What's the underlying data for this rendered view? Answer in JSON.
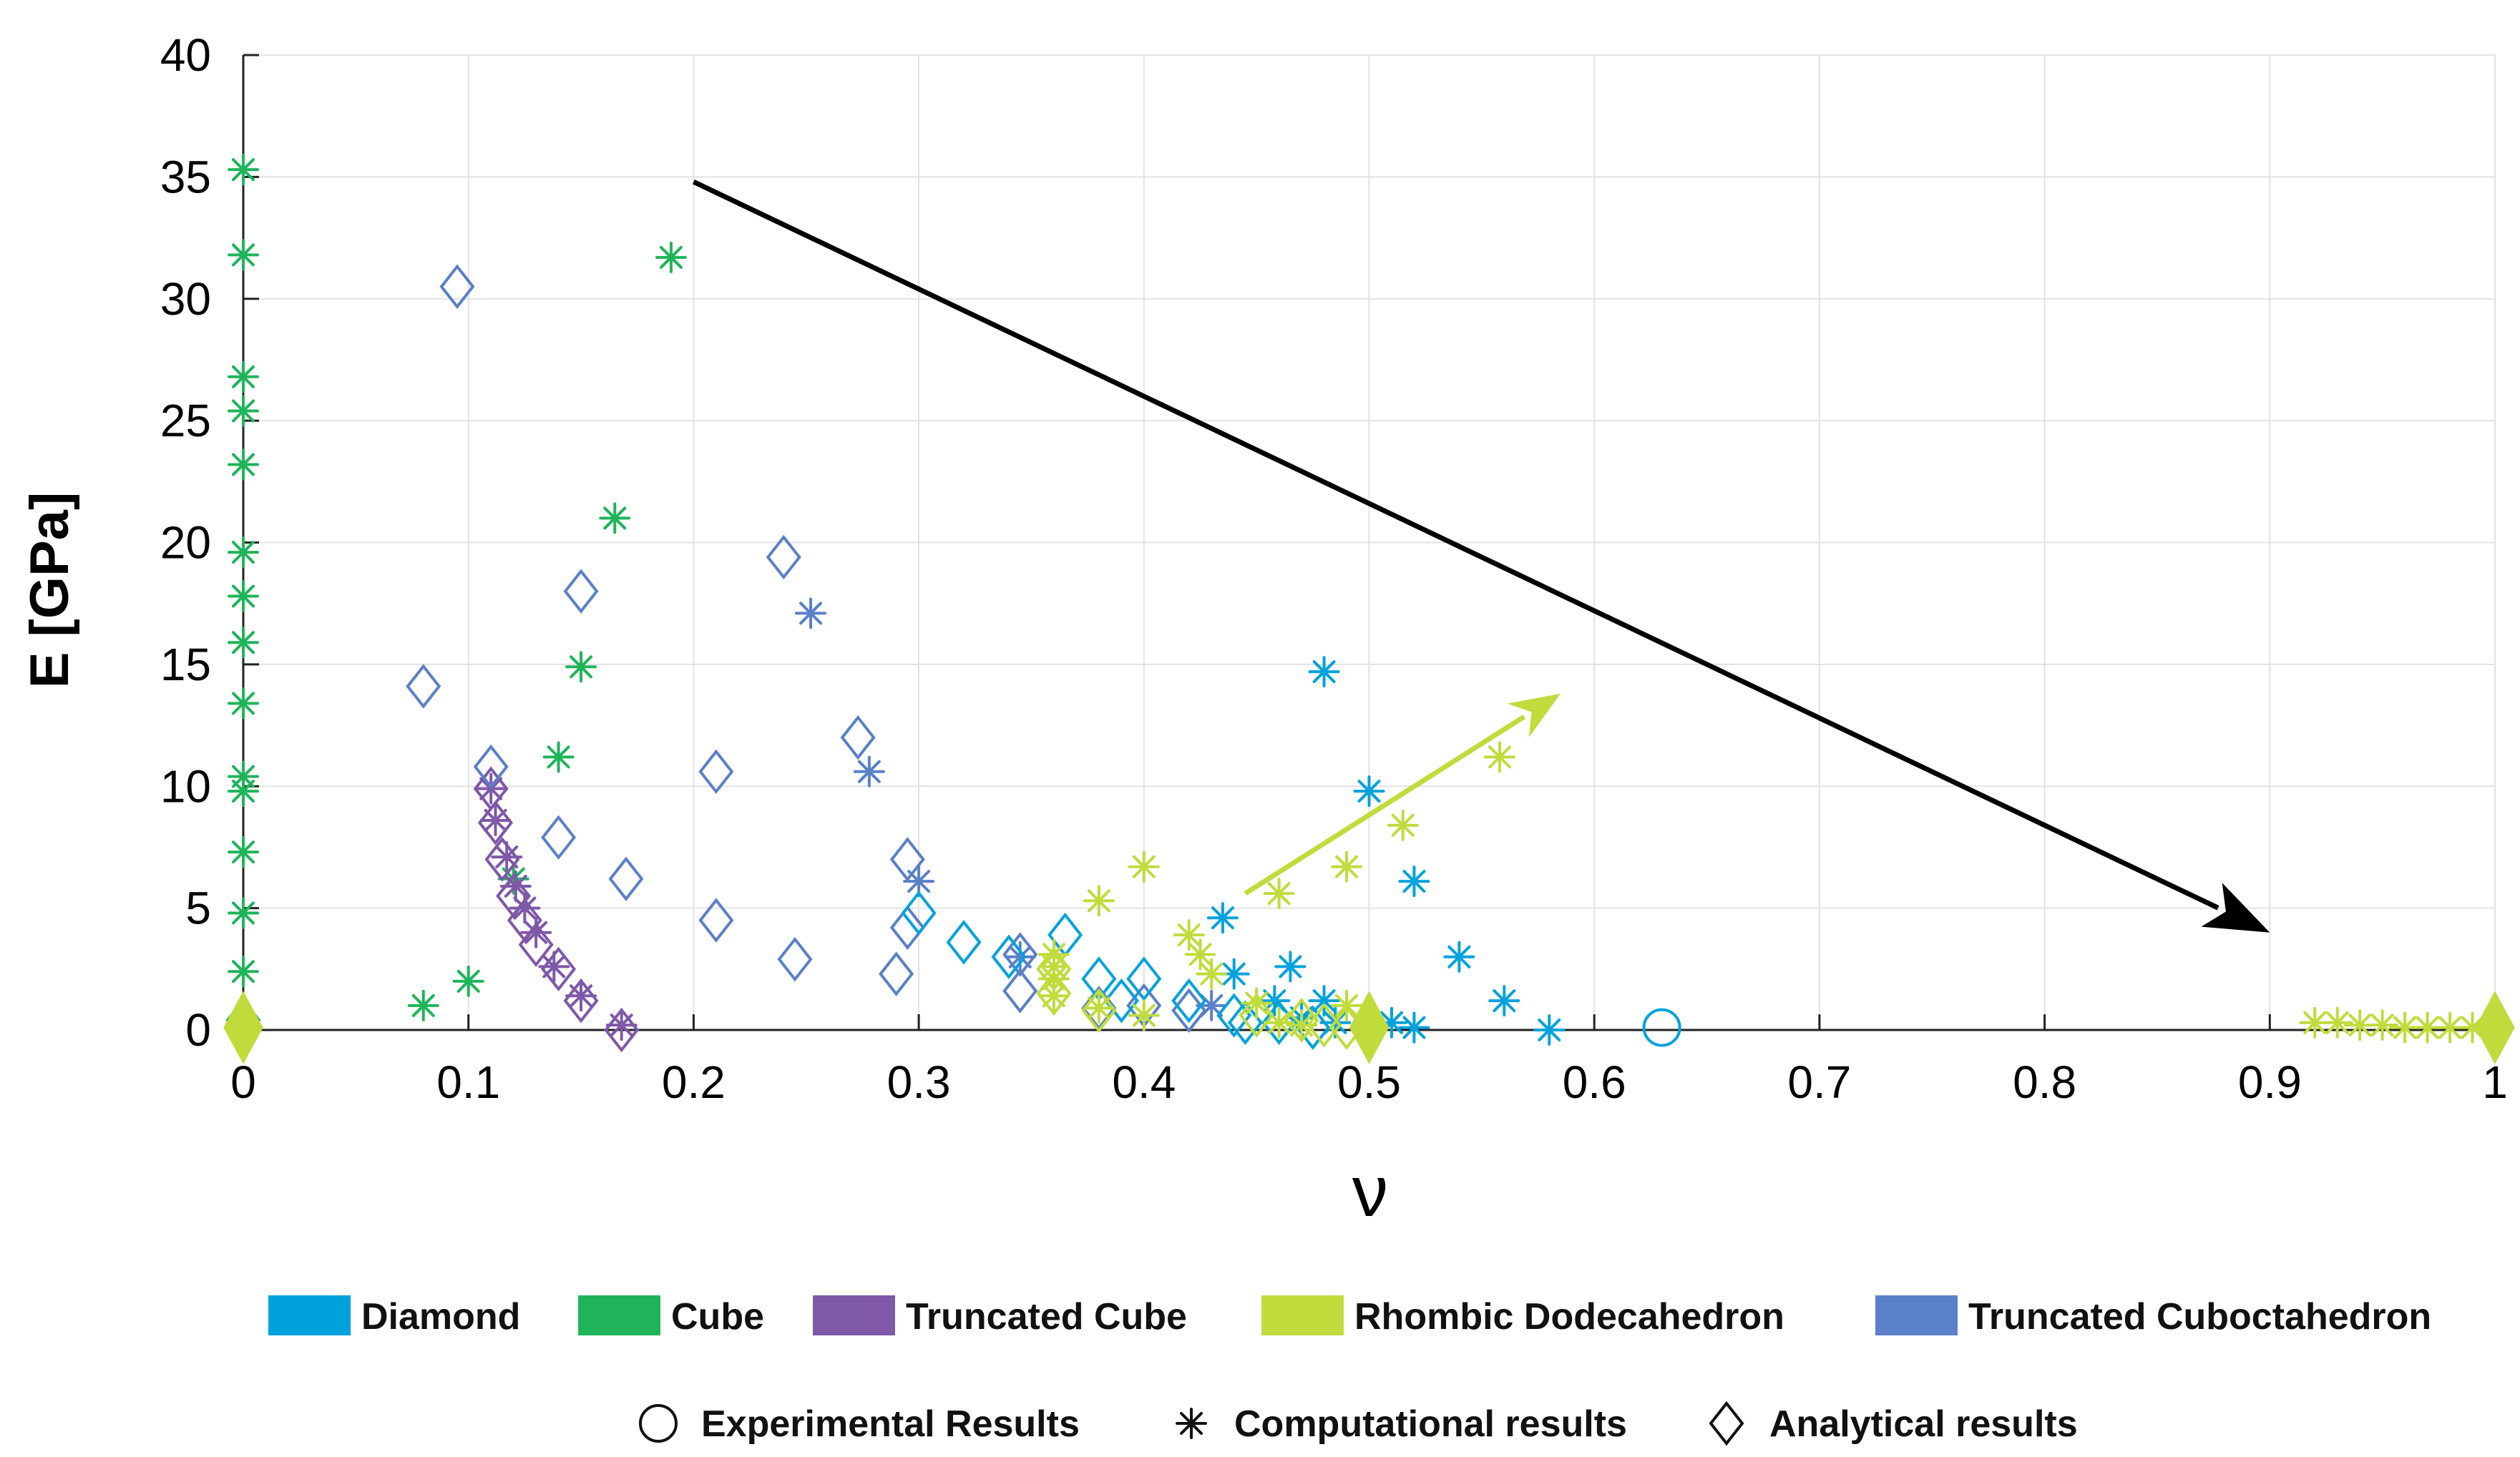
{
  "chart_data": {
    "type": "scatter",
    "title": "",
    "xlabel": "ν",
    "ylabel": "E [GPa]",
    "xlim": [
      0,
      1
    ],
    "ylim": [
      0,
      40
    ],
    "xticks": [
      0,
      0.1,
      0.2,
      0.3,
      0.4,
      0.5,
      0.6,
      0.7,
      0.8,
      0.9,
      1
    ],
    "xtick_labels": [
      "0",
      "0.1",
      "0.2",
      "0.3",
      "0.4",
      "0.5",
      "0.6",
      "0.7",
      "0.8",
      "0.9",
      "1"
    ],
    "yticks": [
      0,
      5,
      10,
      15,
      20,
      25,
      30,
      35,
      40
    ],
    "ytick_labels": [
      "0",
      "5",
      "10",
      "15",
      "20",
      "25",
      "30",
      "35",
      "40"
    ],
    "grid": true,
    "legend_placement": "bottom",
    "colors": {
      "Diamond": "#00a2de",
      "Cube": "#1fb45a",
      "Truncated Cube": "#7f58a8",
      "Rhombic Dodecahedron": "#bfdc3c",
      "Truncated Cuboctahedron": "#5a80c8",
      "trend_arrow": "#000000"
    },
    "legend_materials": [
      "Diamond",
      "Cube",
      "Truncated Cube",
      "Rhombic Dodecahedron",
      "Truncated Cuboctahedron"
    ],
    "legend_methods": [
      {
        "marker": "circle",
        "label": "Experimental Results"
      },
      {
        "marker": "asterisk",
        "label": "Computational results"
      },
      {
        "marker": "diamond",
        "label": "Analytical results"
      }
    ],
    "annotations": [
      {
        "type": "arrow",
        "color": "#000000",
        "from": [
          0.2,
          34.8
        ],
        "to": [
          0.9,
          4.0
        ]
      },
      {
        "type": "arrow",
        "color": "#bfdc3c",
        "from": [
          0.445,
          5.6
        ],
        "to": [
          0.585,
          13.8
        ]
      }
    ],
    "series": [
      {
        "name": "Cube",
        "marker": "asterisk",
        "points": [
          [
            0,
            35.3
          ],
          [
            0,
            31.8
          ],
          [
            0,
            26.8
          ],
          [
            0,
            25.4
          ],
          [
            0,
            23.2
          ],
          [
            0,
            19.6
          ],
          [
            0,
            17.8
          ],
          [
            0,
            15.9
          ],
          [
            0,
            13.4
          ],
          [
            0,
            10.4
          ],
          [
            0,
            9.8
          ],
          [
            0,
            7.3
          ],
          [
            0,
            4.8
          ],
          [
            0,
            2.4
          ],
          [
            0.08,
            1.0
          ],
          [
            0.1,
            2.0
          ],
          [
            0.12,
            6.2
          ],
          [
            0.14,
            11.2
          ],
          [
            0.15,
            14.9
          ],
          [
            0.165,
            21.0
          ],
          [
            0.19,
            31.7
          ]
        ]
      },
      {
        "name": "Cube",
        "marker": "diamond",
        "points": [
          [
            0,
            0.4
          ],
          [
            0,
            0.1
          ]
        ]
      },
      {
        "name": "Truncated Cube",
        "marker": "asterisk",
        "points": [
          [
            0.11,
            9.9
          ],
          [
            0.112,
            8.6
          ],
          [
            0.117,
            7.1
          ],
          [
            0.121,
            5.9
          ],
          [
            0.125,
            5.0
          ],
          [
            0.13,
            4.0
          ],
          [
            0.138,
            2.6
          ],
          [
            0.15,
            1.4
          ],
          [
            0.168,
            0.2
          ]
        ]
      },
      {
        "name": "Truncated Cube",
        "marker": "diamond",
        "points": [
          [
            0.11,
            9.9
          ],
          [
            0.112,
            8.5
          ],
          [
            0.115,
            7.0
          ],
          [
            0.12,
            5.5
          ],
          [
            0.125,
            4.5
          ],
          [
            0.13,
            3.5
          ],
          [
            0.14,
            2.5
          ],
          [
            0.15,
            1.2
          ],
          [
            0.168,
            0.0
          ]
        ]
      },
      {
        "name": "Truncated Cuboctahedron",
        "marker": "asterisk",
        "points": [
          [
            0.252,
            17.1
          ],
          [
            0.278,
            10.6
          ],
          [
            0.3,
            6.1
          ],
          [
            0.345,
            3.0
          ],
          [
            0.43,
            1.0
          ]
        ]
      },
      {
        "name": "Truncated Cuboctahedron",
        "marker": "diamond",
        "points": [
          [
            0.08,
            14.1
          ],
          [
            0.095,
            30.5
          ],
          [
            0.11,
            10.8
          ],
          [
            0.14,
            7.9
          ],
          [
            0.15,
            18.0
          ],
          [
            0.17,
            6.2
          ],
          [
            0.21,
            10.6
          ],
          [
            0.21,
            4.5
          ],
          [
            0.24,
            19.4
          ],
          [
            0.245,
            2.9
          ],
          [
            0.273,
            12.0
          ],
          [
            0.29,
            2.3
          ],
          [
            0.295,
            7.0
          ],
          [
            0.295,
            4.2
          ],
          [
            0.345,
            3.1
          ],
          [
            0.345,
            1.6
          ],
          [
            0.38,
            0.9
          ],
          [
            0.4,
            1.0
          ],
          [
            0.42,
            0.8
          ]
        ]
      },
      {
        "name": "Diamond",
        "marker": "asterisk",
        "points": [
          [
            0.435,
            4.6
          ],
          [
            0.44,
            2.3
          ],
          [
            0.458,
            1.2
          ],
          [
            0.465,
            2.6
          ],
          [
            0.47,
            0.5
          ],
          [
            0.48,
            14.7
          ],
          [
            0.48,
            1.2
          ],
          [
            0.485,
            0.3
          ],
          [
            0.5,
            9.8
          ],
          [
            0.51,
            0.3
          ],
          [
            0.52,
            6.1
          ],
          [
            0.52,
            0.1
          ],
          [
            0.54,
            3.0
          ],
          [
            0.56,
            1.2
          ],
          [
            0.58,
            0.0
          ]
        ]
      },
      {
        "name": "Diamond",
        "marker": "diamond",
        "points": [
          [
            0.3,
            4.8
          ],
          [
            0.32,
            3.6
          ],
          [
            0.34,
            3.0
          ],
          [
            0.365,
            3.9
          ],
          [
            0.38,
            2.1
          ],
          [
            0.39,
            1.2
          ],
          [
            0.4,
            2.1
          ],
          [
            0.42,
            1.2
          ],
          [
            0.44,
            0.6
          ],
          [
            0.445,
            0.3
          ],
          [
            0.46,
            0.3
          ],
          [
            0.475,
            0.1
          ]
        ]
      },
      {
        "name": "Diamond",
        "marker": "circle",
        "points": [
          [
            0.63,
            0.1
          ]
        ]
      },
      {
        "name": "Rhombic Dodecahedron",
        "marker": "asterisk",
        "points": [
          [
            0.36,
            3.1
          ],
          [
            0.36,
            2.6
          ],
          [
            0.36,
            2.1
          ],
          [
            0.36,
            1.4
          ],
          [
            0.38,
            5.3
          ],
          [
            0.38,
            0.9
          ],
          [
            0.4,
            6.7
          ],
          [
            0.4,
            0.6
          ],
          [
            0.42,
            3.9
          ],
          [
            0.425,
            3.1
          ],
          [
            0.43,
            2.3
          ],
          [
            0.45,
            1.1
          ],
          [
            0.46,
            5.6
          ],
          [
            0.46,
            0.3
          ],
          [
            0.47,
            0.2
          ],
          [
            0.49,
            6.7
          ],
          [
            0.49,
            1.0
          ],
          [
            0.5,
            0.1
          ],
          [
            0.515,
            8.4
          ],
          [
            0.558,
            11.2
          ],
          [
            0.92,
            0.3
          ],
          [
            0.93,
            0.3
          ],
          [
            0.94,
            0.2
          ],
          [
            0.95,
            0.2
          ],
          [
            0.96,
            0.1
          ],
          [
            0.97,
            0.1
          ],
          [
            0.98,
            0.1
          ],
          [
            0.99,
            0.1
          ]
        ]
      },
      {
        "name": "Rhombic Dodecahedron",
        "marker": "diamond",
        "points": [
          [
            0.36,
            2.5
          ],
          [
            0.36,
            1.5
          ],
          [
            0.38,
            0.8
          ],
          [
            0.45,
            0.6
          ],
          [
            0.47,
            0.4
          ],
          [
            0.48,
            0.2
          ],
          [
            0.49,
            0.1
          ]
        ]
      },
      {
        "name": "Rhombic Dodecahedron",
        "marker": "filled-diamond",
        "points": [
          [
            0,
            0.1
          ],
          [
            0.5,
            0.1
          ],
          [
            1,
            0.1
          ]
        ]
      }
    ]
  }
}
